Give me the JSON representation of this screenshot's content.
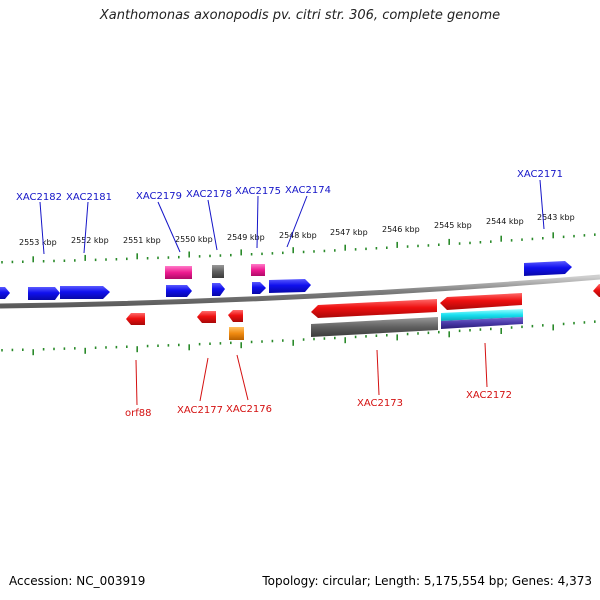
{
  "title": "Xanthomonas axonopodis pv. citri str. 306, complete genome",
  "footer": {
    "accession": "Accession: NC_003919",
    "summary": "Topology: circular; Length: 5,175,554 bp; Genes: 4,373"
  },
  "colors": {
    "forward_gene": "#1a1af0",
    "reverse_gene": "#ee1111",
    "backbone": "#8a8a8a",
    "tick": "#2a8a2a",
    "label_top": "#1515c8",
    "label_bottom": "#d41010"
  },
  "scale_labels": [
    "2553 kbp",
    "2552 kbp",
    "2551 kbp",
    "2550 kbp",
    "2549 kbp",
    "2548 kbp",
    "2547 kbp",
    "2546 kbp",
    "2545 kbp",
    "2544 kbp",
    "2543 kbp"
  ],
  "top_gene_labels": [
    "XAC2182",
    "XAC2181",
    "XAC2179",
    "XAC2178",
    "XAC2175",
    "XAC2174",
    "XAC2171"
  ],
  "bottom_gene_labels": [
    "orf88",
    "XAC2177",
    "XAC2176",
    "XAC2173",
    "XAC2172"
  ]
}
